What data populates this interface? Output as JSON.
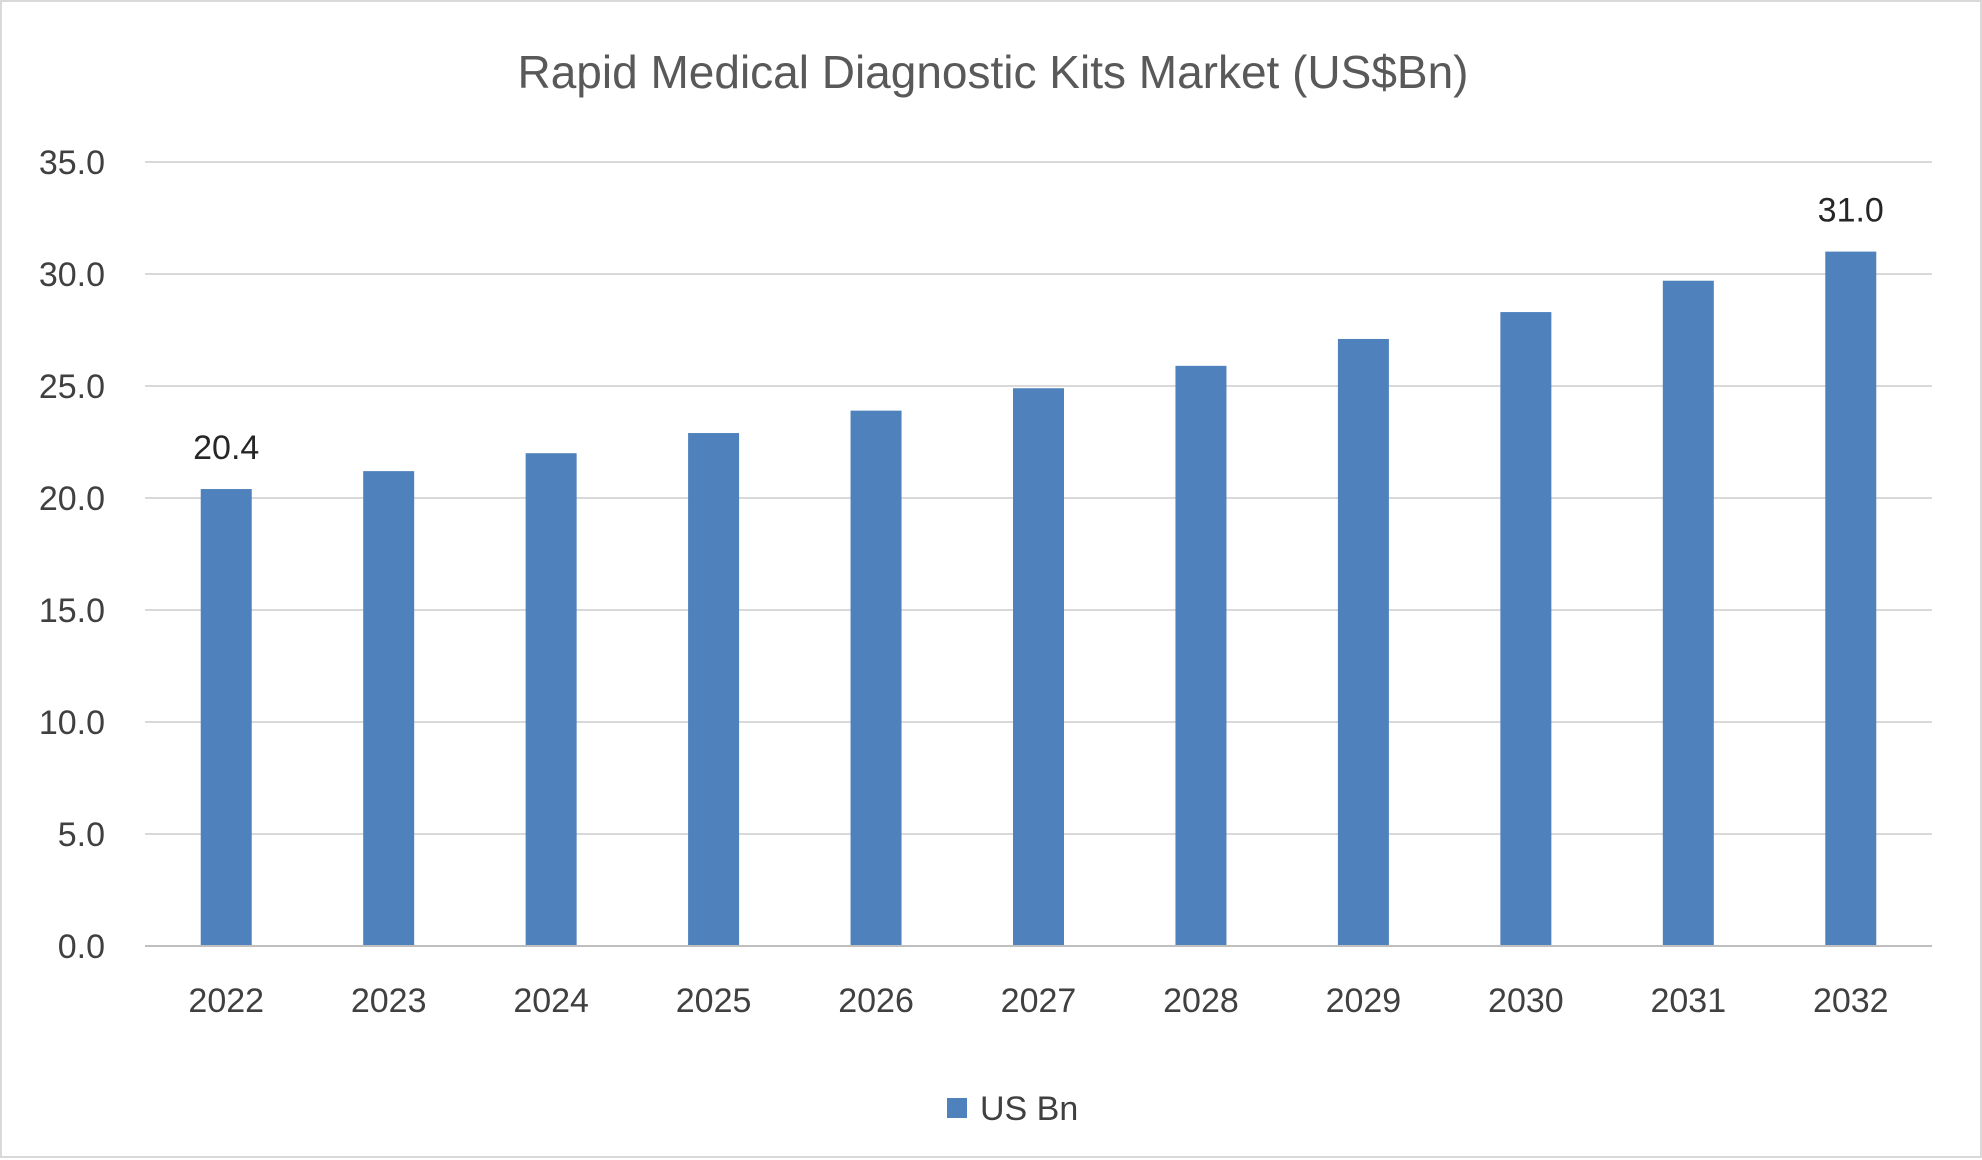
{
  "chart_data": {
    "type": "bar",
    "title": "Rapid Medical Diagnostic Kits Market (US$Bn)",
    "xlabel": "",
    "ylabel": "",
    "categories": [
      "2022",
      "2023",
      "2024",
      "2025",
      "2026",
      "2027",
      "2028",
      "2029",
      "2030",
      "2031",
      "2032"
    ],
    "series": [
      {
        "name": "US Bn",
        "color": "#4f81bd",
        "values": [
          20.4,
          21.2,
          22.0,
          22.9,
          23.9,
          24.9,
          25.9,
          27.1,
          28.3,
          29.7,
          31.0
        ]
      }
    ],
    "ylim": [
      0,
      35
    ],
    "yticks": [
      "0.0",
      "5.0",
      "10.0",
      "15.0",
      "20.0",
      "25.0",
      "30.0",
      "35.0"
    ],
    "data_labels": [
      {
        "index": 0,
        "text": "20.4"
      },
      {
        "index": 10,
        "text": "31.0"
      }
    ],
    "grid": true,
    "legend_position": "bottom"
  }
}
